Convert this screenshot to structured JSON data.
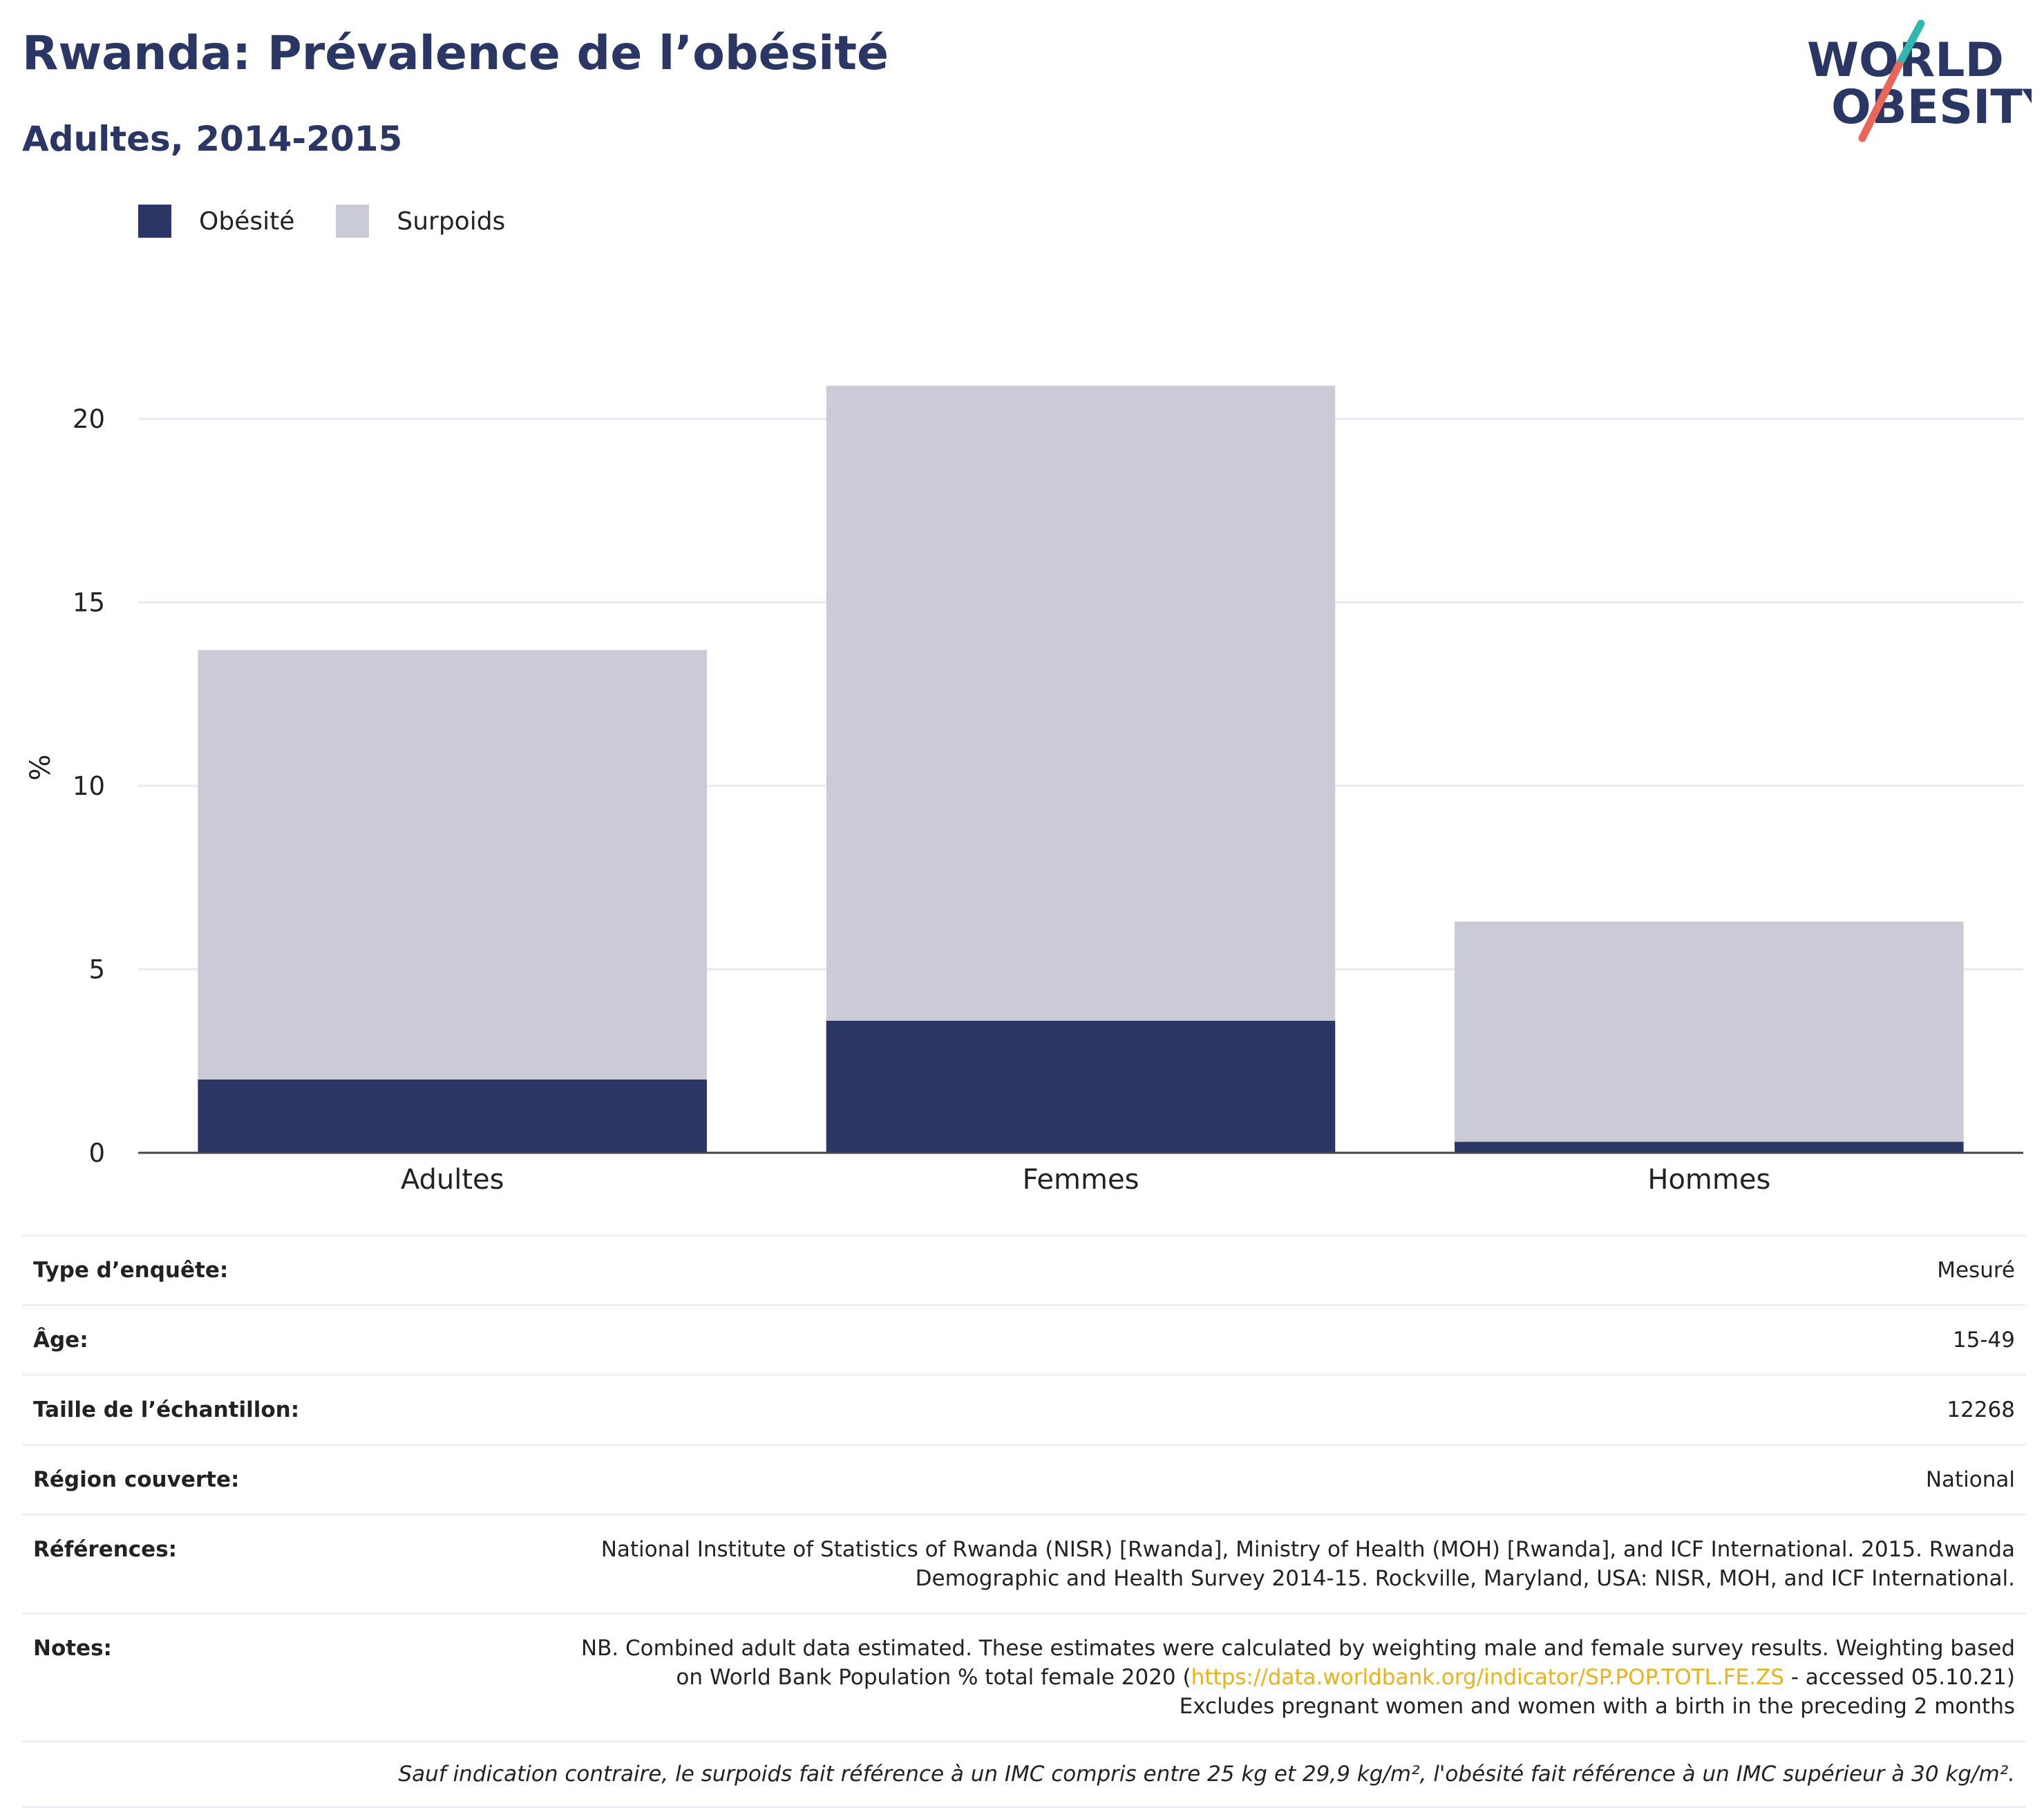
{
  "header": {
    "title": "Rwanda: Prévalence de l’obésité",
    "subtitle": "Adultes, 2014-2015"
  },
  "logo": {
    "line1": "WORLD",
    "line2": "OBESITY",
    "colors": {
      "text": "#2a3663",
      "slash_teal": "#2fb7b0",
      "slash_coral": "#e8675a"
    }
  },
  "legend": {
    "items": [
      {
        "label": "Obésité",
        "color": "#2a3663"
      },
      {
        "label": "Surpoids",
        "color": "#cacbd7"
      }
    ]
  },
  "chart_data": {
    "type": "bar",
    "stacked": true,
    "categories": [
      "Adultes",
      "Femmes",
      "Hommes"
    ],
    "series": [
      {
        "name": "Obésité",
        "color": "#2a3663",
        "values": [
          2.0,
          3.6,
          0.3
        ]
      },
      {
        "name": "Surpoids",
        "color": "#cacbd7",
        "values": [
          11.7,
          17.3,
          6.0
        ]
      }
    ],
    "ylabel": "%",
    "ylim": [
      0,
      21
    ],
    "yticks": [
      0,
      5,
      10,
      15,
      20
    ],
    "grid": true,
    "legend_position": "top-left"
  },
  "info": {
    "survey_type": {
      "label": "Type d’enquête:",
      "value": "Mesuré"
    },
    "age": {
      "label": "Âge:",
      "value": "15-49"
    },
    "sample_size": {
      "label": "Taille de l’échantillon:",
      "value": "12268"
    },
    "region": {
      "label": "Région couverte:",
      "value": "National"
    },
    "references": {
      "label": "Références:",
      "line1": "National Institute of Statistics of Rwanda (NISR) [Rwanda], Ministry of Health (MOH) [Rwanda], and ICF International. 2015. Rwanda",
      "line2": "Demographic and Health Survey 2014-15. Rockville, Maryland, USA: NISR, MOH, and ICF International."
    },
    "notes": {
      "label": "Notes:",
      "line1": "NB. Combined adult data estimated. These estimates were calculated by weighting male and female survey results. Weighting based",
      "line2_pre": "on World Bank Population % total female 2020 (",
      "line2_link": "https://data.worldbank.org/indicator/SP.POP.TOTL.FE.ZS",
      "line2_post": " - accessed 05.10.21)",
      "line3": "Excludes pregnant women and women with a birth in the preceding 2 months"
    },
    "footnote": "Sauf indication contraire, le surpoids fait référence à un IMC compris entre 25 kg et 29,9 kg/m², l'obésité fait référence à un IMC supérieur à 30 kg/m²."
  }
}
